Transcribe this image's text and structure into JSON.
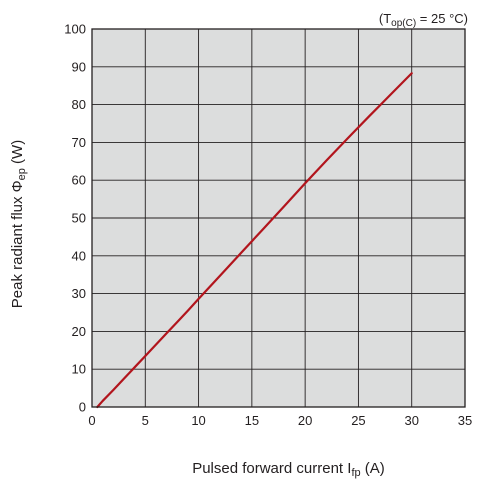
{
  "chart_data": {
    "type": "line",
    "title": "",
    "condition": {
      "open": "(T",
      "sub": "op(C)",
      "rest": " = 25 °C)"
    },
    "xlabel": {
      "main": "Pulsed forward current I",
      "sub": "fp",
      "unit": " (A)"
    },
    "ylabel": {
      "main": "Peak radiant flux Φ",
      "sub": "ep",
      "unit": " (W)"
    },
    "xlim": [
      0,
      35
    ],
    "ylim": [
      0,
      100
    ],
    "xticks": [
      0,
      5,
      10,
      15,
      20,
      25,
      30,
      35
    ],
    "yticks": [
      0,
      10,
      20,
      30,
      40,
      50,
      60,
      70,
      80,
      90,
      100
    ],
    "grid": true,
    "colors": {
      "plot_background": "#dcdddd",
      "grid": "#231f20",
      "line": "#b2151d"
    },
    "series": [
      {
        "x": [
          0.5,
          1,
          2,
          3,
          4,
          5,
          6,
          7,
          8,
          9,
          10,
          12,
          14,
          16,
          18,
          20,
          22,
          24,
          26,
          28,
          30
        ],
        "y": [
          0,
          1.6,
          4.5,
          7.5,
          10.5,
          13.5,
          16.5,
          19.5,
          22.5,
          25.5,
          28.6,
          34.7,
          40.8,
          46.9,
          53,
          59.2,
          65.2,
          71.1,
          76.9,
          82.6,
          88.3
        ]
      }
    ]
  }
}
